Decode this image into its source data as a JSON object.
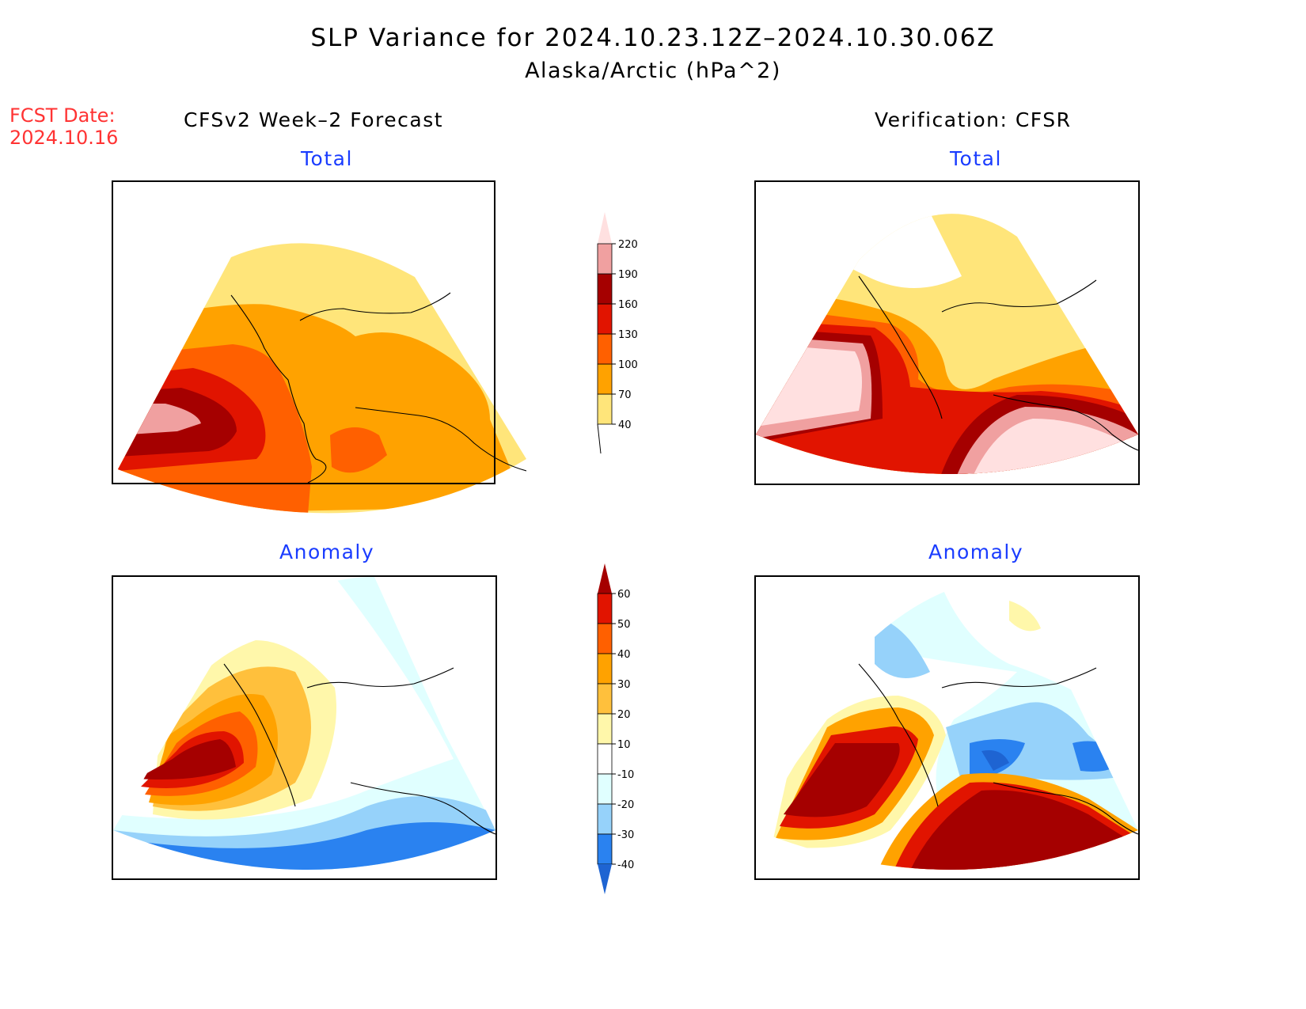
{
  "title": "SLP Variance for 2024.10.23.12Z–2024.10.30.06Z",
  "subtitle": "Alaska/Arctic (hPa^2)",
  "fcst_date_label": "FCST Date:",
  "fcst_date": "2024.10.16",
  "left_header": "CFSv2 Week–2 Forecast",
  "right_header": "Verification: CFSR",
  "panels": [
    {
      "id": "forecast-total",
      "label": "Total"
    },
    {
      "id": "verification-total",
      "label": "Total"
    },
    {
      "id": "forecast-anomaly",
      "label": "Anomaly"
    },
    {
      "id": "verification-anomaly",
      "label": "Anomaly"
    }
  ],
  "chart_data": [
    {
      "type": "heatmap",
      "title": "Total",
      "column": "CFSv2 Week-2 Forecast",
      "colorbar": {
        "levels": [
          40,
          70,
          100,
          130,
          160,
          190,
          220
        ],
        "labels": [
          "40",
          "70",
          "100",
          "130",
          "160",
          "190",
          "220"
        ],
        "colors": [
          "#ffe57a",
          "#ffa200",
          "#ff6000",
          "#e11400",
          "#a50000",
          "#f0a0a0",
          "#ffe0e0"
        ],
        "extend": "both"
      },
      "description": "Max variance (>190) over Bering Sea/Kamchatka west edge; 100-160 band around it; 70-100 over most of Alaska and Gulf of Alaska; 40-70 over Arctic Ocean and SE edge"
    },
    {
      "type": "heatmap",
      "title": "Total",
      "column": "Verification: CFSR",
      "colorbar_ref": "same as forecast total",
      "description": "Very high variance (>220) over western Bering/Kamchatka and Gulf of Alaska; 40-70 over Arctic and interior Alaska"
    },
    {
      "type": "heatmap",
      "title": "Anomaly",
      "column": "CFSv2 Week-2 Forecast",
      "colorbar": {
        "levels": [
          -40,
          -30,
          -20,
          -10,
          10,
          20,
          30,
          40,
          50,
          60
        ],
        "labels": [
          "-40",
          "-30",
          "-20",
          "-10",
          "10",
          "20",
          "30",
          "40",
          "50",
          "60"
        ],
        "colors": [
          "#2a82f0",
          "#96d2fa",
          "#e0ffff",
          "#ffffff",
          "#fff7aa",
          "#ffc03c",
          "#ffa200",
          "#ff6000",
          "#e11400",
          "#a50000"
        ],
        "below_color": "#1e64d2",
        "extend": "both"
      },
      "description": "Positive anomaly (>60) over western Bering Sea; negative (-20 to -40) over North Pacific south of Alaska"
    },
    {
      "type": "heatmap",
      "title": "Anomaly",
      "column": "Verification: CFSR",
      "colorbar_ref": "same as forecast anomaly",
      "description": "Strong positive (>60) over Bering Sea and Gulf of Alaska; negative (-20 to -40) over interior Alaska/Yukon"
    }
  ]
}
